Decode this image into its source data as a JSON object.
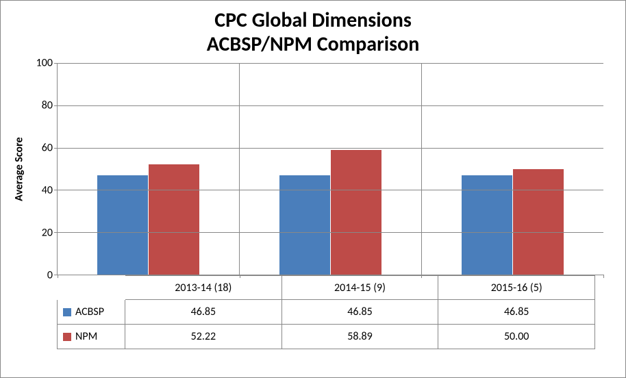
{
  "chart": {
    "type": "bar",
    "title_line1": "CPC Global Dimensions",
    "title_line2": "ACBSP/NPM Comparison",
    "title_fontsize": 30,
    "title_color": "#000000",
    "background_color": "#ffffff",
    "border_color": "#888888",
    "y_axis": {
      "label": "Average Score",
      "label_fontsize": 16,
      "ylim": [
        0,
        100
      ],
      "ytick_step": 20,
      "ticks": [
        0,
        20,
        40,
        60,
        80,
        100
      ],
      "tick_fontsize": 16,
      "grid_color": "#888888"
    },
    "categories": [
      "2013-14 (18)",
      "2014-15 (9)",
      "2015-16 (5)"
    ],
    "category_fontsize": 16,
    "series": [
      {
        "name": "ACBSP",
        "color": "#4a7ebb",
        "values": [
          "46.85",
          "46.85",
          "46.85"
        ],
        "values_num": [
          46.85,
          46.85,
          46.85
        ]
      },
      {
        "name": "NPM",
        "color": "#be4b48",
        "values": [
          "52.22",
          "58.89",
          "50.00"
        ],
        "values_num": [
          52.22,
          58.89,
          50.0
        ]
      }
    ],
    "bar_width_ratio": 0.28,
    "bar_gap_ratio": 0.0,
    "data_table_fontsize": 16,
    "legend_swatch_size": 12
  }
}
